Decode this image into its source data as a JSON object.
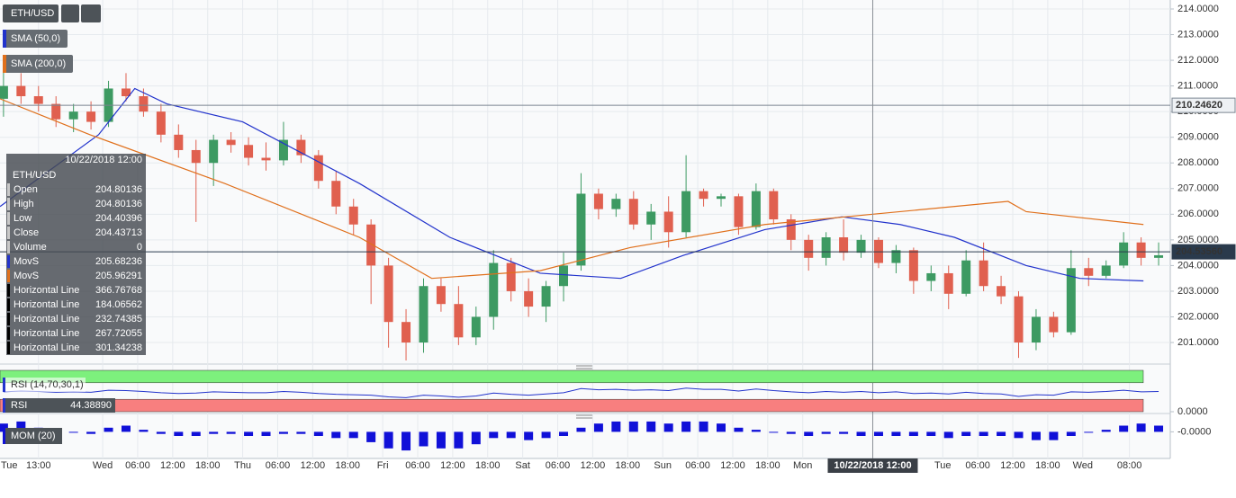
{
  "chart_data": [
    {
      "type": "candlestick",
      "title": "ETH/USD",
      "xlim": [
        6.4,
        207
      ],
      "ylim": [
        200.23,
        214.35
      ],
      "xticks": [
        {
          "value": 0,
          "label": "Tue"
        },
        {
          "value": 13,
          "label": "13:00"
        },
        {
          "value": 24,
          "label": "Wed"
        },
        {
          "value": 30,
          "label": "06:00"
        },
        {
          "value": 36,
          "label": "12:00"
        },
        {
          "value": 42,
          "label": "18:00"
        },
        {
          "value": 48,
          "label": "Thu"
        },
        {
          "value": 54,
          "label": "06:00"
        },
        {
          "value": 60,
          "label": "12:00"
        },
        {
          "value": 66,
          "label": "18:00"
        },
        {
          "value": 72,
          "label": "Fri"
        },
        {
          "value": 78,
          "label": "06:00"
        },
        {
          "value": 84,
          "label": "12:00"
        },
        {
          "value": 90,
          "label": "18:00"
        },
        {
          "value": 96,
          "label": "Sat"
        },
        {
          "value": 102,
          "label": "06:00"
        },
        {
          "value": 108,
          "label": "12:00"
        },
        {
          "value": 114,
          "label": "18:00"
        },
        {
          "value": 120,
          "label": "Sun"
        },
        {
          "value": 126,
          "label": "06:00"
        },
        {
          "value": 132,
          "label": "12:00"
        },
        {
          "value": 138,
          "label": "18:00"
        },
        {
          "value": 144,
          "label": "Mon"
        },
        {
          "value": 168,
          "label": "Tue"
        },
        {
          "value": 174,
          "label": "06:00"
        },
        {
          "value": 180,
          "label": "12:00"
        },
        {
          "value": 186,
          "label": "18:00"
        },
        {
          "value": 192,
          "label": "Wed"
        },
        {
          "value": 200,
          "label": "08:00"
        }
      ],
      "yticks": [
        {
          "value": 201,
          "label": "201.0000"
        },
        {
          "value": 202,
          "label": "202.0000"
        },
        {
          "value": 203,
          "label": "203.0000"
        },
        {
          "value": 204,
          "label": "204.0000"
        },
        {
          "value": 205,
          "label": "205.0000"
        },
        {
          "value": 206,
          "label": "206.0000"
        },
        {
          "value": 207,
          "label": "207.0000"
        },
        {
          "value": 208,
          "label": "208.0000"
        },
        {
          "value": 209,
          "label": "209.0000"
        },
        {
          "value": 210,
          "label": "210.0000"
        },
        {
          "value": 211,
          "label": "211.0000"
        },
        {
          "value": 212,
          "label": "212.0000"
        },
        {
          "value": 213,
          "label": "213.0000"
        },
        {
          "value": 214,
          "label": "214.0000"
        }
      ],
      "up_color": "#3d9a62",
      "down_color": "#e0604f",
      "x": [
        7,
        10,
        13,
        16,
        19,
        22,
        25,
        28,
        31,
        34,
        37,
        40,
        43,
        46,
        49,
        52,
        55,
        58,
        61,
        64,
        67,
        70,
        73,
        76,
        79,
        82,
        85,
        88,
        91,
        94,
        97,
        100,
        103,
        106,
        109,
        112,
        115,
        118,
        121,
        124,
        127,
        130,
        133,
        136,
        139,
        142,
        145,
        148,
        151,
        154,
        157,
        160,
        163,
        166,
        169,
        172,
        175,
        178,
        181,
        184,
        187,
        190,
        193,
        196,
        199,
        202,
        205
      ],
      "ohlc": [
        [
          210.5,
          211.8,
          209.8,
          211.0
        ],
        [
          211.0,
          211.5,
          210.3,
          210.6
        ],
        [
          210.6,
          211.0,
          210.0,
          210.3
        ],
        [
          210.3,
          210.6,
          209.4,
          209.7
        ],
        [
          209.7,
          210.3,
          209.2,
          210.0
        ],
        [
          210.0,
          210.4,
          209.3,
          209.6
        ],
        [
          209.6,
          211.2,
          209.4,
          210.9
        ],
        [
          210.9,
          211.5,
          210.4,
          210.6
        ],
        [
          210.6,
          210.9,
          209.8,
          210.0
        ],
        [
          210.0,
          210.3,
          208.8,
          209.1
        ],
        [
          209.1,
          209.5,
          208.2,
          208.5
        ],
        [
          208.5,
          208.9,
          205.7,
          208.0
        ],
        [
          208.0,
          209.1,
          207.1,
          208.9
        ],
        [
          208.9,
          209.2,
          208.4,
          208.7
        ],
        [
          208.7,
          209.0,
          207.9,
          208.2
        ],
        [
          208.2,
          208.8,
          207.7,
          208.1
        ],
        [
          208.1,
          209.6,
          207.9,
          208.9
        ],
        [
          208.9,
          209.1,
          208.0,
          208.3
        ],
        [
          208.3,
          208.5,
          207.0,
          207.3
        ],
        [
          207.3,
          207.7,
          206.0,
          206.3
        ],
        [
          206.3,
          206.6,
          205.2,
          205.6
        ],
        [
          205.6,
          205.8,
          202.5,
          204.0
        ],
        [
          204.0,
          204.3,
          200.8,
          201.8
        ],
        [
          201.8,
          202.3,
          200.3,
          201.0
        ],
        [
          201.0,
          203.5,
          200.6,
          203.2
        ],
        [
          203.2,
          203.5,
          202.2,
          202.5
        ],
        [
          202.5,
          203.2,
          200.9,
          201.2
        ],
        [
          201.2,
          202.4,
          200.9,
          202.0
        ],
        [
          202.0,
          204.6,
          201.5,
          204.1
        ],
        [
          204.1,
          204.3,
          202.6,
          203.0
        ],
        [
          203.0,
          203.5,
          202.0,
          202.4
        ],
        [
          202.4,
          203.4,
          201.8,
          203.2
        ],
        [
          203.2,
          204.5,
          202.6,
          204.0
        ],
        [
          204.0,
          207.6,
          203.8,
          206.8
        ],
        [
          206.8,
          207.0,
          205.8,
          206.2
        ],
        [
          206.2,
          206.8,
          205.9,
          206.6
        ],
        [
          206.6,
          206.9,
          205.4,
          205.6
        ],
        [
          205.6,
          206.4,
          205.0,
          206.1
        ],
        [
          206.1,
          206.7,
          204.7,
          205.3
        ],
        [
          205.3,
          208.3,
          205.1,
          206.9
        ],
        [
          206.9,
          207.0,
          206.3,
          206.6
        ],
        [
          206.6,
          206.8,
          206.3,
          206.7
        ],
        [
          206.7,
          206.8,
          205.2,
          205.5
        ],
        [
          205.5,
          207.2,
          205.4,
          206.9
        ],
        [
          206.9,
          207.0,
          205.6,
          205.8
        ],
        [
          205.8,
          206.0,
          204.6,
          205.0
        ],
        [
          205.0,
          205.2,
          203.8,
          204.3
        ],
        [
          204.3,
          205.3,
          204.0,
          205.1
        ],
        [
          205.1,
          205.8,
          204.2,
          204.5
        ],
        [
          204.5,
          205.2,
          204.3,
          205.0
        ],
        [
          205.0,
          205.1,
          203.9,
          204.1
        ],
        [
          204.1,
          204.8,
          203.7,
          204.6
        ],
        [
          204.6,
          204.7,
          202.9,
          203.4
        ],
        [
          203.4,
          204.0,
          203.0,
          203.7
        ],
        [
          203.7,
          204.0,
          202.3,
          202.9
        ],
        [
          202.9,
          204.6,
          202.8,
          204.2
        ],
        [
          204.2,
          204.9,
          203.0,
          203.2
        ],
        [
          203.2,
          203.6,
          202.5,
          202.8
        ],
        [
          202.8,
          203.0,
          200.4,
          201.0
        ],
        [
          201.0,
          202.3,
          200.7,
          202.0
        ],
        [
          202.0,
          202.2,
          201.2,
          201.4
        ],
        [
          201.4,
          204.6,
          201.3,
          203.9
        ],
        [
          203.9,
          204.3,
          203.2,
          203.6
        ],
        [
          203.6,
          204.2,
          203.5,
          204.0
        ],
        [
          204.0,
          205.3,
          203.9,
          204.9
        ],
        [
          204.9,
          205.1,
          204.0,
          204.3
        ],
        [
          204.3,
          204.9,
          204.0,
          204.4
        ]
      ],
      "series": [
        {
          "name": "SMA (50,0)",
          "color": "#2233cc",
          "x": [
            6.4,
            23.3,
            29.5,
            35,
            48,
            68,
            83.5,
            99,
            112.8,
            123.6,
            137.5,
            150.7,
            160.7,
            170,
            182.3,
            191.5,
            202.4
          ],
          "values": [
            206.3,
            209.1,
            210.9,
            210.3,
            209.6,
            207.2,
            205.1,
            203.7,
            203.5,
            204.4,
            205.4,
            205.9,
            205.6,
            205.1,
            204.0,
            203.5,
            203.4
          ]
        },
        {
          "name": "SMA (200,0)",
          "color": "#e0701c",
          "x": [
            6.4,
            21.8,
            44.9,
            68,
            80.4,
            99,
            114.4,
            137.5,
            156,
            179.2,
            182.3,
            202.4
          ],
          "values": [
            210.5,
            209.1,
            207.2,
            205.1,
            203.5,
            203.8,
            204.7,
            205.6,
            206.0,
            206.5,
            206.1,
            205.6
          ]
        }
      ],
      "price_lines": [
        {
          "value": 210.2462,
          "label": "210.24620",
          "color": "#7a8590",
          "box": "#eef1f4",
          "text": "#1c2a38"
        },
        {
          "value": 204.5356,
          "label": "204.53560",
          "color": "#2a3a4c",
          "box": "#2a3a4c",
          "text": "#ffffff"
        }
      ],
      "crosshair": {
        "x": 156,
        "label": "10/22/2018 12:00"
      },
      "data_window": {
        "header": "10/22/2018 12:00",
        "symbol": "ETH/USD",
        "rows": [
          [
            "Open",
            "204.80136"
          ],
          [
            "High",
            "204.80136"
          ],
          [
            "Low",
            "204.40396"
          ],
          [
            "Close",
            "204.43713"
          ],
          [
            "Volume",
            "0"
          ],
          [
            "MovS",
            "205.68236"
          ],
          [
            "MovS",
            "205.96291"
          ],
          [
            "Horizontal Line",
            "366.76768"
          ],
          [
            "Horizontal Line",
            "184.06562"
          ],
          [
            "Horizontal Line",
            "232.74385"
          ],
          [
            "Horizontal Line",
            "267.72055"
          ],
          [
            "Horizontal Line",
            "301.34238"
          ]
        ]
      }
    },
    {
      "type": "line",
      "title": "RSI (14,70,30,1)",
      "name": "RSI",
      "last": "44.38890",
      "color": "#2233cc",
      "upper": 70,
      "lower": 30,
      "upper_color": "#7df07d",
      "lower_color": "#f87f7f",
      "ylim": [
        0,
        100
      ],
      "yticks": [
        {
          "value": 0,
          "label": "0.0000"
        }
      ],
      "x": [
        7,
        10,
        13,
        16,
        19,
        22,
        25,
        28,
        31,
        34,
        37,
        40,
        43,
        46,
        49,
        52,
        55,
        58,
        61,
        64,
        67,
        70,
        73,
        76,
        79,
        82,
        85,
        88,
        91,
        94,
        97,
        100,
        103,
        106,
        109,
        112,
        115,
        118,
        121,
        124,
        127,
        130,
        133,
        136,
        139,
        142,
        145,
        148,
        151,
        154,
        157,
        160,
        163,
        166,
        169,
        172,
        175,
        178,
        181,
        184,
        187,
        190,
        193,
        196,
        199,
        202,
        205
      ],
      "values": [
        48,
        50,
        49,
        47,
        48,
        47,
        52,
        51,
        49,
        46,
        44,
        45,
        48,
        47,
        46,
        46,
        49,
        47,
        44,
        42,
        41,
        40,
        36,
        34,
        40,
        38,
        35,
        38,
        45,
        42,
        40,
        43,
        46,
        56,
        53,
        54,
        52,
        53,
        51,
        57,
        54,
        54,
        50,
        55,
        51,
        48,
        46,
        49,
        47,
        49,
        46,
        48,
        44,
        45,
        43,
        47,
        44,
        43,
        37,
        41,
        40,
        48,
        47,
        49,
        52,
        48,
        49
      ]
    },
    {
      "type": "bar",
      "title": "MOM (20)",
      "color": "#1010d8",
      "ylim": [
        -12,
        8
      ],
      "yticks": [
        {
          "value": 0,
          "label": "-0.0000"
        }
      ],
      "x": [
        7,
        10,
        13,
        16,
        19,
        22,
        25,
        28,
        31,
        34,
        37,
        40,
        43,
        46,
        49,
        52,
        55,
        58,
        61,
        64,
        67,
        70,
        73,
        76,
        79,
        82,
        85,
        88,
        91,
        94,
        97,
        100,
        103,
        106,
        109,
        112,
        115,
        118,
        121,
        124,
        127,
        130,
        133,
        136,
        139,
        142,
        145,
        148,
        151,
        154,
        157,
        160,
        163,
        166,
        169,
        172,
        175,
        178,
        181,
        184,
        187,
        190,
        193,
        196,
        199,
        202,
        205
      ],
      "values": [
        4,
        5,
        2,
        -1,
        0,
        -1,
        2,
        3,
        1,
        -1,
        -2,
        -2,
        -1,
        -1,
        -2,
        -2,
        -1,
        -1,
        -2,
        -3,
        -3,
        -5,
        -8,
        -9,
        -7,
        -8,
        -8,
        -6,
        -3,
        -3,
        -4,
        -3,
        -2,
        2,
        4,
        5,
        5,
        5,
        4,
        5,
        5,
        4,
        2,
        1,
        0,
        -1,
        -2,
        -1,
        -1,
        -2,
        -2,
        -2,
        -2,
        -2,
        -3,
        -2,
        -2,
        -2,
        -3,
        -4,
        -4,
        -2,
        0,
        1,
        3,
        4,
        3
      ]
    }
  ]
}
